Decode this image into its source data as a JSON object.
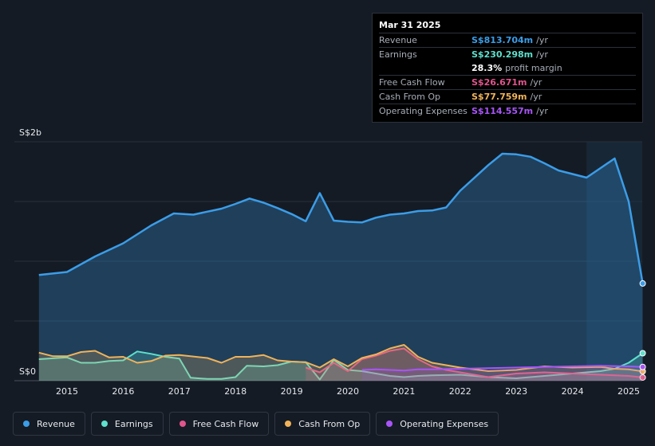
{
  "tooltip": {
    "date": "Mar 31 2025",
    "rows": [
      {
        "label": "Revenue",
        "value": "S$813.704m",
        "unit": "/yr",
        "color": "#3b9de8"
      },
      {
        "label": "Earnings",
        "value": "S$230.298m",
        "unit": "/yr",
        "color": "#5ee0cc"
      },
      {
        "label": "",
        "value": "28.3%",
        "unit": "profit margin",
        "color": "#ffffff"
      },
      {
        "label": "Free Cash Flow",
        "value": "S$26.671m",
        "unit": "/yr",
        "color": "#e0558c"
      },
      {
        "label": "Cash From Op",
        "value": "S$77.759m",
        "unit": "/yr",
        "color": "#f0b35a"
      },
      {
        "label": "Operating Expenses",
        "value": "S$114.557m",
        "unit": "/yr",
        "color": "#a855f7"
      }
    ]
  },
  "legend": [
    {
      "label": "Revenue",
      "color": "#3b9de8"
    },
    {
      "label": "Earnings",
      "color": "#5ee0cc"
    },
    {
      "label": "Free Cash Flow",
      "color": "#e0558c"
    },
    {
      "label": "Cash From Op",
      "color": "#f0b35a"
    },
    {
      "label": "Operating Expenses",
      "color": "#a855f7"
    }
  ],
  "chart_data": {
    "type": "area",
    "y_tick_labels": [
      "S$2b",
      "S$0"
    ],
    "ylim": [
      0,
      2000
    ],
    "xlim": [
      2014.5,
      2025.25
    ],
    "x_tick_labels": [
      "2015",
      "2016",
      "2017",
      "2018",
      "2019",
      "2020",
      "2021",
      "2022",
      "2023",
      "2024",
      "2025"
    ],
    "x_ticks": [
      2015,
      2016,
      2017,
      2018,
      2019,
      2020,
      2021,
      2022,
      2023,
      2024,
      2025
    ],
    "forecast_shade_from": 2024.25,
    "grid": true,
    "series": [
      {
        "name": "Revenue",
        "color": "#3b9de8",
        "x": [
          2014.5,
          2015.0,
          2015.5,
          2016.0,
          2016.5,
          2016.9,
          2017.25,
          2017.75,
          2018.0,
          2018.25,
          2018.5,
          2018.75,
          2019.0,
          2019.25,
          2019.5,
          2019.75,
          2020.0,
          2020.25,
          2020.5,
          2020.75,
          2021.0,
          2021.25,
          2021.5,
          2021.75,
          2022.0,
          2022.5,
          2022.75,
          2023.0,
          2023.25,
          2023.5,
          2023.75,
          2024.0,
          2024.25,
          2024.5,
          2024.75,
          2025.0,
          2025.25
        ],
        "values": [
          885,
          910,
          1040,
          1150,
          1300,
          1400,
          1390,
          1440,
          1480,
          1525,
          1490,
          1445,
          1395,
          1335,
          1570,
          1340,
          1330,
          1325,
          1365,
          1390,
          1400,
          1420,
          1425,
          1450,
          1590,
          1805,
          1900,
          1895,
          1875,
          1820,
          1760,
          1730,
          1700,
          1780,
          1860,
          1500,
          814
        ]
      },
      {
        "name": "Earnings",
        "color": "#5ee0cc",
        "x": [
          2014.5,
          2015.0,
          2015.25,
          2015.5,
          2015.75,
          2016.0,
          2016.25,
          2016.5,
          2016.75,
          2017.0,
          2017.2,
          2017.5,
          2017.75,
          2018.0,
          2018.2,
          2018.5,
          2018.75,
          2019.0,
          2019.25,
          2019.5,
          2019.75,
          2020.0,
          2020.25,
          2020.5,
          2020.75,
          2021.0,
          2021.25,
          2021.5,
          2022.0,
          2022.5,
          2023.0,
          2023.5,
          2024.0,
          2024.5,
          2024.75,
          2025.0,
          2025.25
        ],
        "values": [
          180,
          195,
          150,
          150,
          165,
          170,
          245,
          225,
          200,
          185,
          25,
          15,
          15,
          30,
          125,
          120,
          130,
          160,
          155,
          10,
          175,
          90,
          80,
          60,
          40,
          30,
          40,
          45,
          50,
          30,
          20,
          40,
          60,
          80,
          100,
          150,
          230
        ]
      },
      {
        "name": "Free Cash Flow",
        "color": "#e0558c",
        "x": [
          2019.25,
          2019.5,
          2019.75,
          2020.0,
          2020.25,
          2020.5,
          2020.75,
          2021.0,
          2021.25,
          2021.5,
          2021.75,
          2022.0,
          2022.5,
          2023.0,
          2023.5,
          2024.0,
          2024.5,
          2025.0,
          2025.25
        ],
        "values": [
          110,
          70,
          150,
          80,
          180,
          210,
          250,
          270,
          180,
          120,
          90,
          70,
          30,
          60,
          70,
          60,
          50,
          40,
          27
        ]
      },
      {
        "name": "Cash From Op",
        "color": "#f0b35a",
        "x": [
          2014.5,
          2014.75,
          2015.0,
          2015.25,
          2015.5,
          2015.75,
          2016.0,
          2016.25,
          2016.5,
          2016.75,
          2017.0,
          2017.5,
          2017.75,
          2018.0,
          2018.25,
          2018.5,
          2018.75,
          2019.0,
          2019.25,
          2019.5,
          2019.75,
          2020.0,
          2020.25,
          2020.5,
          2020.75,
          2021.0,
          2021.25,
          2021.5,
          2022.0,
          2022.5,
          2023.0,
          2023.5,
          2024.0,
          2024.5,
          2024.75,
          2025.0,
          2025.25
        ],
        "values": [
          235,
          205,
          205,
          240,
          250,
          195,
          200,
          150,
          165,
          210,
          215,
          190,
          150,
          200,
          200,
          215,
          170,
          160,
          155,
          110,
          180,
          120,
          190,
          220,
          270,
          300,
          200,
          150,
          110,
          80,
          90,
          120,
          110,
          115,
          100,
          95,
          78
        ]
      },
      {
        "name": "Operating Expenses",
        "color": "#a855f7",
        "x": [
          2020.25,
          2020.5,
          2020.75,
          2021.0,
          2021.25,
          2021.5,
          2022.0,
          2022.5,
          2023.0,
          2023.5,
          2024.0,
          2024.5,
          2025.0,
          2025.25
        ],
        "values": [
          90,
          95,
          90,
          85,
          95,
          95,
          100,
          105,
          110,
          115,
          120,
          125,
          120,
          115
        ]
      }
    ]
  }
}
